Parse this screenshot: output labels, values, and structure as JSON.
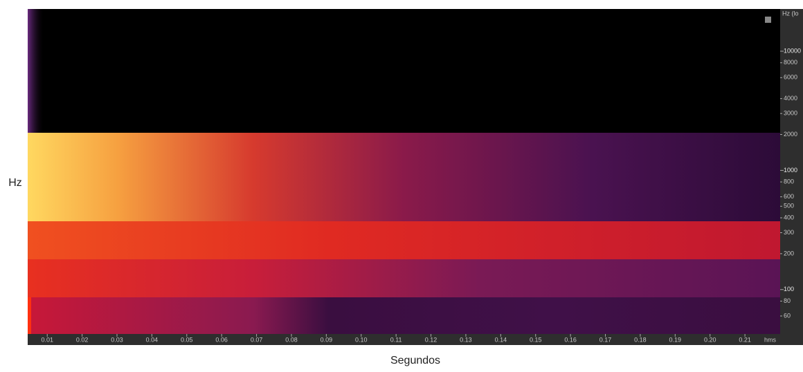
{
  "chart_data": {
    "type": "spectrogram",
    "y_label": "Hz",
    "x_label": "Segundos",
    "y_unit": "Hz (lo",
    "x_unit": "hms",
    "y_log": true,
    "xlim": [
      0.0044,
      0.2201
    ],
    "ylim": [
      42.4,
      22600
    ],
    "xticks": [
      0.01,
      0.02,
      0.03,
      0.04,
      0.05,
      0.06,
      0.07,
      0.08,
      0.09,
      {
        "value": 0.1,
        "label": "0.10"
      },
      0.11,
      0.12,
      0.13,
      0.14,
      0.15,
      0.16,
      0.17,
      0.18,
      0.19,
      {
        "value": 0.2,
        "label": "0.20"
      },
      0.21
    ],
    "yticks": [
      10000,
      8000,
      6000,
      4000,
      3000,
      2000,
      1000,
      800,
      600,
      500,
      400,
      300,
      200,
      100,
      80,
      60
    ],
    "major_yticks": [
      10000,
      1000,
      100
    ]
  }
}
